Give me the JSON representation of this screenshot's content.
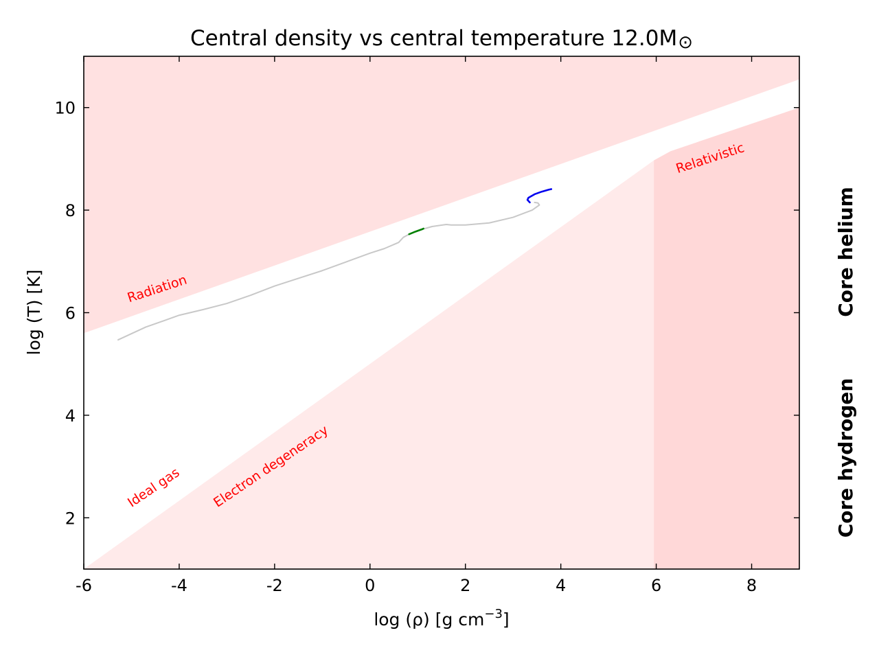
{
  "chart_data": {
    "type": "line",
    "title": "Central density vs central temperature 12.0M",
    "title_symbol": "⊙",
    "xlabel": "log (ρ) [g cm",
    "xlabel_exp": "−3",
    "xlabel_end": "]",
    "ylabel": "log (T) [K]",
    "xlim": [
      -6,
      9
    ],
    "ylim": [
      1,
      11
    ],
    "xticks": [
      -6,
      -4,
      -2,
      0,
      2,
      4,
      6,
      8
    ],
    "yticks": [
      2,
      4,
      6,
      8,
      10
    ],
    "regions": [
      {
        "name": "Radiation",
        "color": "#ffe1e1",
        "polygon": [
          [
            -6,
            5.6
          ],
          [
            9,
            10.55
          ],
          [
            9,
            11
          ],
          [
            -6,
            11
          ]
        ]
      },
      {
        "name": "Electron degeneracy",
        "color": "#ffeaea",
        "polygon": [
          [
            -6,
            1
          ],
          [
            5.95,
            8.97
          ],
          [
            5.95,
            1
          ]
        ]
      },
      {
        "name": "Relativistic",
        "color": "#ffd8d8",
        "polygon": [
          [
            5.95,
            1
          ],
          [
            5.95,
            8.97
          ],
          [
            6.3,
            9.15
          ],
          [
            9,
            10.0
          ],
          [
            9,
            1
          ]
        ]
      }
    ],
    "region_labels": [
      {
        "text": "Radiation",
        "x": -5.05,
        "y": 6.2,
        "angle": -18
      },
      {
        "text": "Ideal gas",
        "x": -5.0,
        "y": 2.2,
        "angle": -34
      },
      {
        "text": "Electron degeneracy",
        "x": -3.2,
        "y": 2.2,
        "angle": -34
      },
      {
        "text": "Relativistic",
        "x": 6.45,
        "y": 8.72,
        "angle": -18
      }
    ],
    "series": [
      {
        "color": "#c8c8c8",
        "x": [
          -5.28,
          -4.7,
          -4.3,
          -4.0,
          -3.5,
          -3.0,
          -2.5,
          -2.0,
          -1.5,
          -1.0,
          -0.5,
          0.0,
          0.3,
          0.6,
          0.7,
          0.8,
          1.0,
          1.3,
          1.6,
          1.7,
          2.0,
          2.5,
          3.0,
          3.4,
          3.55,
          3.52,
          3.45
        ],
        "y": [
          5.47,
          5.72,
          5.85,
          5.95,
          6.06,
          6.18,
          6.34,
          6.52,
          6.67,
          6.82,
          6.99,
          7.16,
          7.25,
          7.37,
          7.47,
          7.52,
          7.6,
          7.68,
          7.72,
          7.71,
          7.71,
          7.75,
          7.86,
          8.0,
          8.1,
          8.14,
          8.15
        ]
      },
      {
        "name": "Core hydrogen",
        "color": "#008000",
        "x": [
          0.82,
          0.95,
          1.1,
          1.12
        ],
        "y": [
          7.53,
          7.58,
          7.63,
          7.64
        ]
      },
      {
        "name": "Core helium",
        "color": "#0000ee",
        "x": [
          3.35,
          3.3,
          3.32,
          3.45,
          3.6,
          3.75,
          3.8
        ],
        "y": [
          8.15,
          8.2,
          8.24,
          8.31,
          8.36,
          8.4,
          8.41
        ]
      }
    ],
    "side_labels": [
      {
        "text": "Core helium",
        "color": "#0000ee"
      },
      {
        "text": "Core hydrogen",
        "color": "#008000"
      }
    ]
  }
}
